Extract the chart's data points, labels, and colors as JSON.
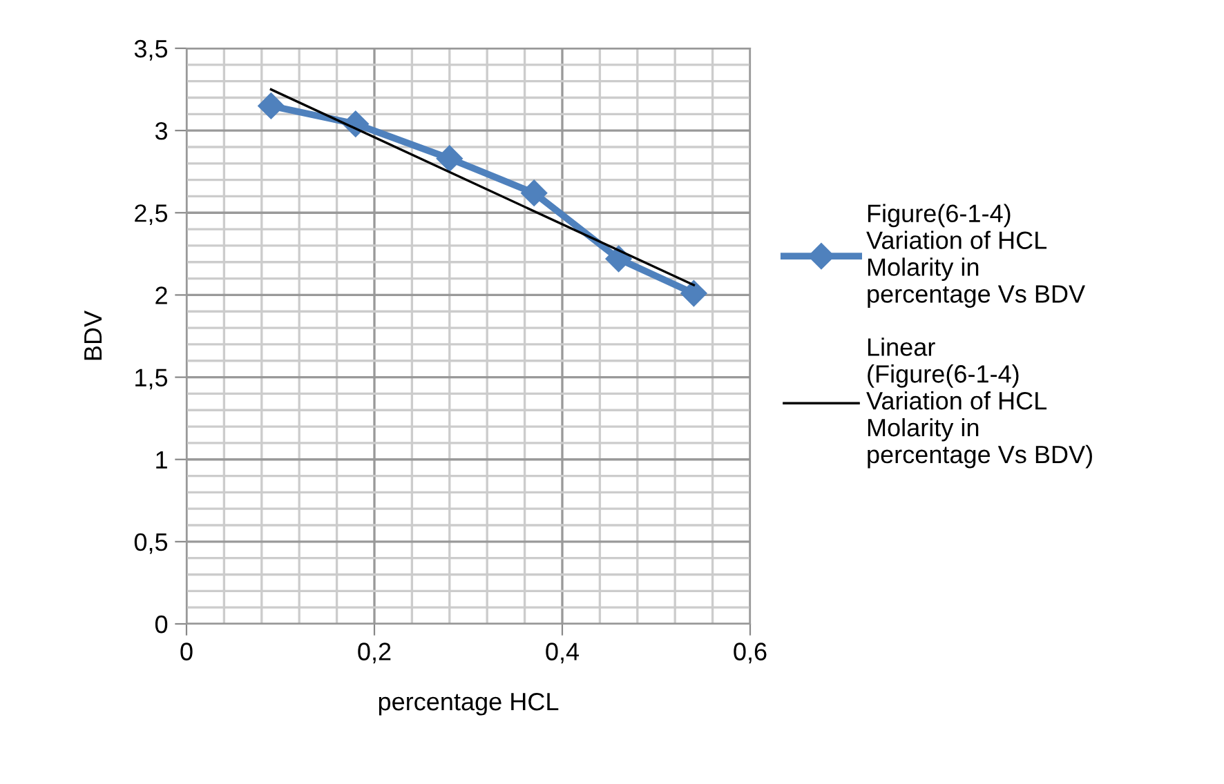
{
  "chart_data": {
    "type": "line",
    "xlabel": "percentage HCL",
    "ylabel": "BDV",
    "xlim": [
      0,
      0.6
    ],
    "ylim": [
      0,
      3.5
    ],
    "xticks": [
      0,
      {
        "value": 0.2,
        "label": "0,2"
      },
      {
        "value": 0.4,
        "label": "0,4"
      },
      {
        "value": 0.6,
        "label": "0,6"
      }
    ],
    "yticks": [
      0,
      {
        "value": 0.5,
        "label": "0,5"
      },
      1,
      {
        "value": 1.5,
        "label": "1,5"
      },
      2,
      {
        "value": 2.5,
        "label": "2,5"
      },
      3,
      {
        "value": 3.5,
        "label": "3,5"
      }
    ],
    "grid": true,
    "legend": "right",
    "series": [
      {
        "name": "Figure(6-1-4) Variation of HCL Molarity in percentage Vs BDV",
        "color": "#4f81bd",
        "marker": "diamond",
        "x": [
          0.09,
          0.18,
          0.28,
          0.37,
          0.46,
          0.54
        ],
        "values": [
          3.15,
          3.04,
          2.83,
          2.62,
          2.22,
          2.01
        ]
      },
      {
        "name": "Linear (Figure(6-1-4) Variation of HCL Molarity in percentage Vs BDV)",
        "color": "#000000",
        "x": [
          0.09,
          0.54
        ],
        "values": [
          3.25,
          2.06
        ]
      }
    ]
  }
}
